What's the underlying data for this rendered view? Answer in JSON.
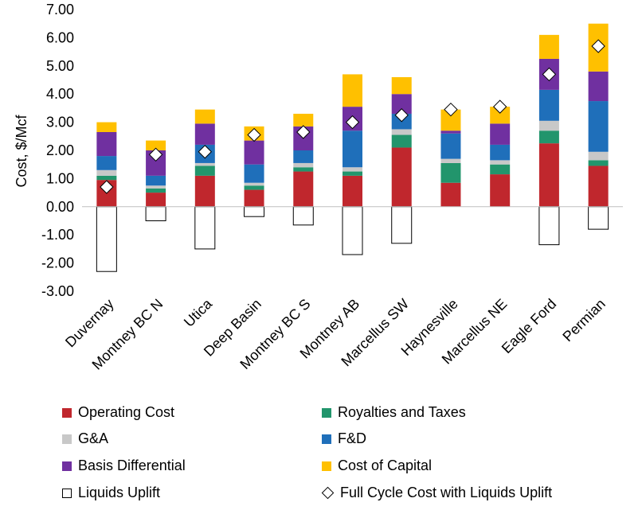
{
  "chart_data": {
    "type": "bar",
    "stacked": true,
    "ylabel": "Cost, $/Mcf",
    "xlabel": "",
    "ylim": [
      -3,
      7
    ],
    "yticks": [
      "7.00",
      "6.00",
      "5.00",
      "4.00",
      "3.00",
      "2.00",
      "1.00",
      "0.00",
      "-1.00",
      "-2.00",
      "-3.00"
    ],
    "categories": [
      "Duvernay",
      "Montney BC N",
      "Utica",
      "Deep Basin",
      "Montney BC S",
      "Montney AB",
      "Marcellus SW",
      "Haynesville",
      "Marcellus NE",
      "Eagle Ford",
      "Permian"
    ],
    "series": [
      {
        "name": "Operating Cost",
        "color": "#C0272D",
        "values": [
          0.95,
          0.5,
          1.1,
          0.6,
          1.25,
          1.1,
          2.1,
          0.85,
          1.15,
          2.25,
          1.45
        ]
      },
      {
        "name": "Royalties and Taxes",
        "color": "#22956C",
        "values": [
          0.15,
          0.15,
          0.35,
          0.15,
          0.15,
          0.15,
          0.45,
          0.7,
          0.35,
          0.45,
          0.2
        ]
      },
      {
        "name": "G&A",
        "color": "#C8C8C8",
        "values": [
          0.2,
          0.1,
          0.1,
          0.1,
          0.15,
          0.15,
          0.2,
          0.15,
          0.15,
          0.35,
          0.3
        ]
      },
      {
        "name": "F&D",
        "color": "#1F6FBA",
        "values": [
          0.5,
          0.35,
          0.65,
          0.65,
          0.45,
          1.3,
          0.55,
          0.9,
          0.55,
          1.1,
          1.8
        ]
      },
      {
        "name": "Basis Differential",
        "color": "#7030A0",
        "values": [
          0.85,
          0.9,
          0.75,
          0.85,
          0.85,
          0.85,
          0.7,
          0.1,
          0.75,
          1.1,
          1.05
        ]
      },
      {
        "name": "Cost of Capital",
        "color": "#FFC000",
        "values": [
          0.35,
          0.35,
          0.5,
          0.5,
          0.45,
          1.15,
          0.6,
          0.75,
          0.6,
          0.85,
          1.7
        ]
      },
      {
        "name": "Liquids Uplift",
        "color": "#FFFFFF",
        "values": [
          -2.3,
          -0.5,
          -1.5,
          -0.35,
          -0.65,
          -1.7,
          -1.3,
          0,
          0,
          -1.35,
          -0.8
        ]
      }
    ],
    "markers": {
      "name": "Full Cycle Cost with Liquids Uplift",
      "values": [
        0.7,
        1.85,
        1.95,
        2.55,
        2.65,
        3.0,
        3.25,
        3.45,
        3.55,
        4.7,
        5.7
      ]
    },
    "grid": false,
    "legend_position": "bottom"
  }
}
